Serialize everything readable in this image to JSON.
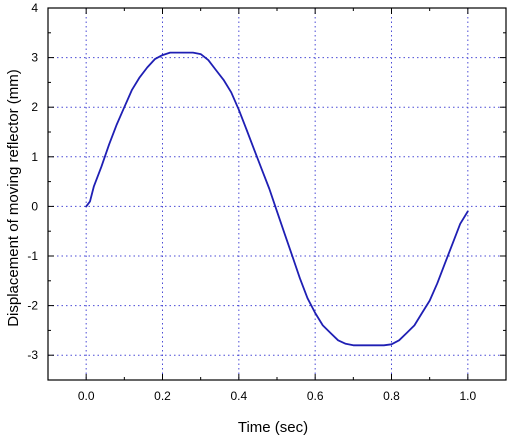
{
  "chart_data": {
    "type": "line",
    "title": "",
    "xlabel": "Time (sec)",
    "ylabel": "Displacement of moving reflector (mm)",
    "xlim": [
      -0.1,
      1.1
    ],
    "ylim": [
      -3.5,
      4.0
    ],
    "x_ticks": [
      0.0,
      0.2,
      0.4,
      0.6,
      0.8,
      1.0
    ],
    "x_tick_labels": [
      "0.0",
      "0.2",
      "0.4",
      "0.6",
      "0.8",
      "1.0"
    ],
    "y_ticks": [
      -3,
      -2,
      -1,
      0,
      1,
      2,
      3,
      4
    ],
    "y_tick_labels": [
      "-3",
      "-2",
      "-1",
      "0",
      "1",
      "2",
      "3",
      "4"
    ],
    "grid": true,
    "legend": "none",
    "series": [
      {
        "color": "#1f1fb4",
        "x": [
          0.0,
          0.01,
          0.02,
          0.04,
          0.06,
          0.08,
          0.1,
          0.12,
          0.14,
          0.16,
          0.18,
          0.2,
          0.22,
          0.24,
          0.26,
          0.28,
          0.3,
          0.32,
          0.34,
          0.36,
          0.38,
          0.4,
          0.42,
          0.44,
          0.46,
          0.48,
          0.5,
          0.52,
          0.54,
          0.56,
          0.58,
          0.6,
          0.62,
          0.64,
          0.66,
          0.68,
          0.7,
          0.72,
          0.74,
          0.76,
          0.78,
          0.8,
          0.82,
          0.84,
          0.86,
          0.88,
          0.9,
          0.92,
          0.94,
          0.96,
          0.98,
          1.0
        ],
        "y": [
          0.0,
          0.1,
          0.4,
          0.8,
          1.25,
          1.65,
          2.0,
          2.35,
          2.6,
          2.8,
          2.97,
          3.05,
          3.1,
          3.1,
          3.1,
          3.1,
          3.07,
          2.95,
          2.75,
          2.55,
          2.3,
          1.95,
          1.55,
          1.15,
          0.75,
          0.35,
          -0.1,
          -0.55,
          -1.0,
          -1.45,
          -1.85,
          -2.15,
          -2.4,
          -2.55,
          -2.7,
          -2.77,
          -2.8,
          -2.8,
          -2.8,
          -2.8,
          -2.8,
          -2.78,
          -2.7,
          -2.55,
          -2.4,
          -2.15,
          -1.9,
          -1.55,
          -1.15,
          -0.75,
          -0.35,
          -0.1
        ]
      }
    ]
  }
}
